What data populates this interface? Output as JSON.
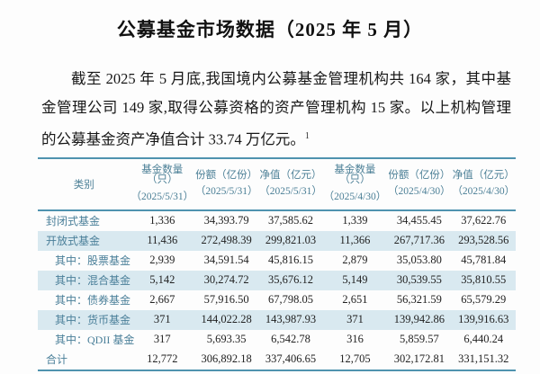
{
  "title": "公募基金市场数据（2025 年 5 月）",
  "paragraph": {
    "text": "截至 2025 年 5 月底,我国境内公募基金管理机构共 164 家，其中基金管理公司 149 家,取得公募资格的资产管理机构 15 家。以上机构管理的公募基金资产净值合计 33.74 万亿元。",
    "footnote_mark": "1"
  },
  "colors": {
    "accent_teal_text": "#4a7f99",
    "table_border": "#4f93af",
    "row_highlight": "#d9e9f0"
  },
  "table": {
    "headers": [
      {
        "title": "类别",
        "date": ""
      },
      {
        "title": "基金数量（只）",
        "date": "（2025/5/31）"
      },
      {
        "title": "份额（亿份）",
        "date": "（2025/5/31）"
      },
      {
        "title": "净值（亿元）",
        "date": "（2025/5/31）"
      },
      {
        "title": "基金数量（只）",
        "date": "（2025/4/30）"
      },
      {
        "title": "份额（亿份）",
        "date": "（2025/4/30）"
      },
      {
        "title": "净值（亿元）",
        "date": "（2025/4/30）"
      }
    ],
    "rows": [
      {
        "label": "封闭式基金",
        "values": [
          "1,336",
          "34,393.79",
          "37,585.62",
          "1,339",
          "34,455.45",
          "37,622.76"
        ]
      },
      {
        "label": "开放式基金",
        "values": [
          "11,436",
          "272,498.39",
          "299,821.03",
          "11,366",
          "267,717.36",
          "293,528.56"
        ]
      },
      {
        "label": "其中：股票基金",
        "values": [
          "2,939",
          "34,591.54",
          "45,816.15",
          "2,879",
          "35,053.80",
          "45,781.84"
        ]
      },
      {
        "label": "其中：混合基金",
        "values": [
          "5,142",
          "30,274.72",
          "35,676.12",
          "5,149",
          "30,539.55",
          "35,810.55"
        ]
      },
      {
        "label": "其中：债券基金",
        "values": [
          "2,667",
          "57,916.50",
          "67,798.05",
          "2,651",
          "56,321.59",
          "65,579.29"
        ]
      },
      {
        "label": "其中：货币基金",
        "values": [
          "371",
          "144,022.28",
          "143,987.93",
          "371",
          "139,942.86",
          "139,916.63"
        ]
      },
      {
        "label": "其中：QDII 基金",
        "values": [
          "317",
          "5,693.35",
          "6,542.78",
          "316",
          "5,859.57",
          "6,440.24"
        ]
      },
      {
        "label": "合计",
        "values": [
          "12,772",
          "306,892.18",
          "337,406.65",
          "12,705",
          "302,172.81",
          "331,151.32"
        ]
      }
    ]
  }
}
